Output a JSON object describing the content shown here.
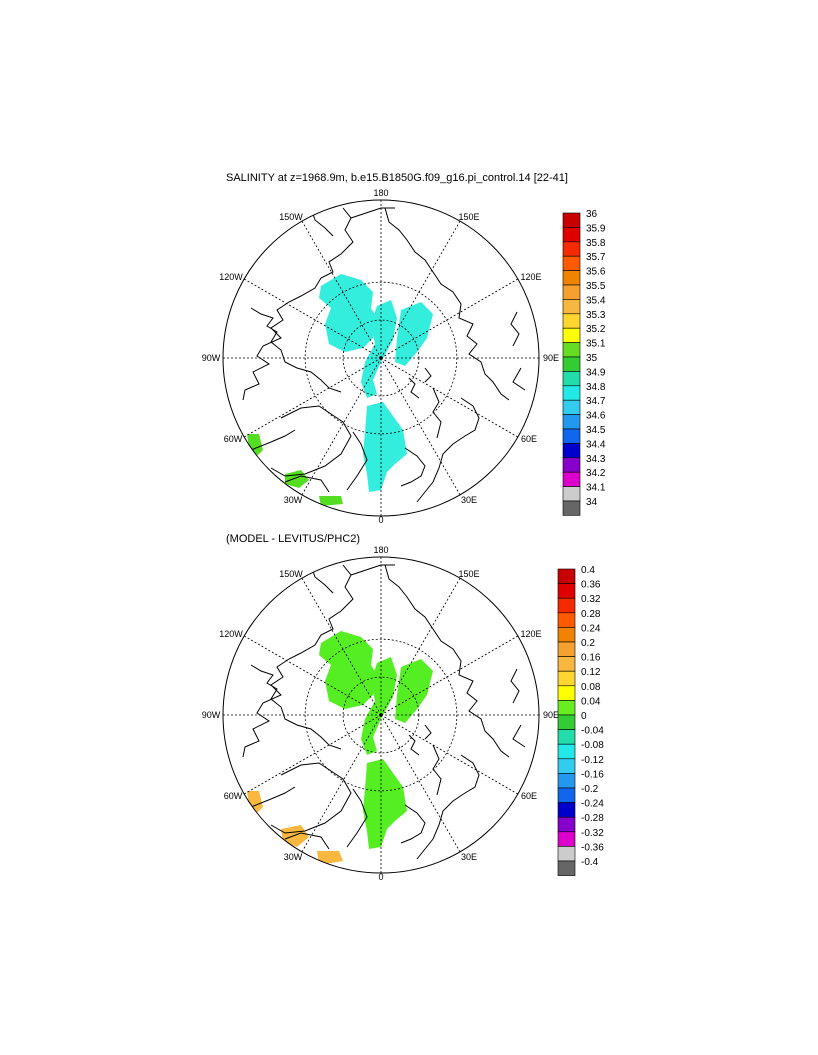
{
  "panels": [
    {
      "id": "salinity",
      "title": "SALINITY at z=1968.9m, b.e15.B1850G.f09_g16.pi_control.14 [22-41]",
      "lon_labels": [
        "180",
        "150E",
        "120E",
        "90E",
        "60E",
        "30E",
        "0",
        "30W",
        "60W",
        "90W",
        "120W",
        "150W"
      ],
      "colorbar": {
        "labels": [
          "36",
          "35.9",
          "35.8",
          "35.7",
          "35.6",
          "35.5",
          "35.4",
          "35.3",
          "35.2",
          "35.1",
          "35",
          "34.9",
          "34.8",
          "34.7",
          "34.6",
          "34.5",
          "34.4",
          "34.3",
          "34.2",
          "34.1",
          "34"
        ],
        "colors": [
          "#c80000",
          "#e00000",
          "#f52a00",
          "#ff5a00",
          "#f08400",
          "#f6a030",
          "#f8b840",
          "#ffd530",
          "#ffff00",
          "#66dd22",
          "#33cc33",
          "#22ddaa",
          "#22e8e8",
          "#33ccee",
          "#2299ee",
          "#1166ee",
          "#0000cc",
          "#8800cc",
          "#dd00cc",
          "#cccccc",
          "#666666"
        ]
      },
      "fill_color": "#33eedd",
      "regions": [
        "central-arctic-patch",
        "lomonosov-ridge-strip",
        "fram-strait-patch",
        "canadian-archipelago-patch"
      ],
      "small_patches": [
        "baffin-green-patch",
        "greenland-sea-green-patch",
        "nordic-seas-green-patch"
      ],
      "small_patch_color": "#55dd22"
    },
    {
      "id": "difference",
      "title": "(MODEL - LEVITUS/PHC2)",
      "lon_labels": [
        "180",
        "150E",
        "120E",
        "90E",
        "60E",
        "30E",
        "0",
        "30W",
        "60W",
        "90W",
        "120W",
        "150W"
      ],
      "colorbar": {
        "labels": [
          "0.4",
          "0.36",
          "0.32",
          "0.28",
          "0.24",
          "0.2",
          "0.16",
          "0.12",
          "0.08",
          "0.04",
          "0",
          "-0.04",
          "-0.08",
          "-0.12",
          "-0.16",
          "-0.2",
          "-0.24",
          "-0.28",
          "-0.32",
          "-0.36",
          "-0.4"
        ],
        "colors": [
          "#c80000",
          "#e00000",
          "#f52a00",
          "#ff5a00",
          "#f08400",
          "#f6a030",
          "#f8b840",
          "#ffd530",
          "#ffff00",
          "#66ee22",
          "#33cc33",
          "#22ddaa",
          "#22e8e8",
          "#33ccee",
          "#2299ee",
          "#1166ee",
          "#0000cc",
          "#8800cc",
          "#dd00cc",
          "#cccccc",
          "#666666"
        ]
      },
      "fill_color": "#55ee22",
      "regions": [
        "central-arctic-patch",
        "lomonosov-ridge-strip",
        "fram-strait-patch",
        "canadian-archipelago-patch"
      ],
      "small_patches": [
        "baffin-orange-patch",
        "greenland-sea-orange-patch",
        "nordic-seas-orange-patch"
      ],
      "small_patch_color": "#f8b840"
    }
  ]
}
